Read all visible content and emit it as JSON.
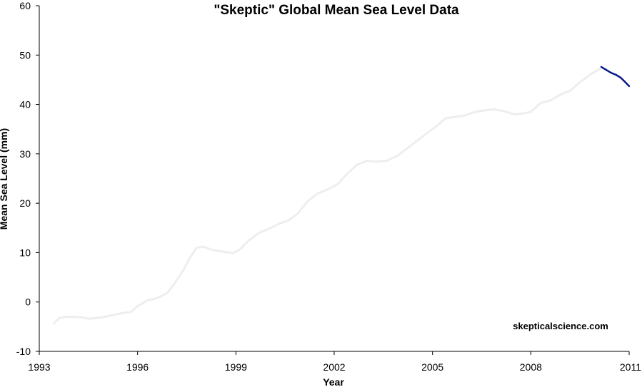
{
  "chart_data": {
    "type": "line",
    "title": "\"Skeptic\" Global Mean Sea Level Data",
    "xlabel": "Year",
    "ylabel": "Mean Sea Level (mm)",
    "xlim": [
      1993,
      2011
    ],
    "ylim": [
      -10,
      60
    ],
    "x_ticks": [
      1993,
      1996,
      1999,
      2002,
      2005,
      2008,
      2011
    ],
    "y_ticks": [
      -10,
      0,
      10,
      20,
      30,
      40,
      50,
      60
    ],
    "x_tick_labels": [
      "1993",
      "1996",
      "1999",
      "2002",
      "2005",
      "2008",
      "2011"
    ],
    "y_tick_labels": [
      "-10",
      "0",
      "10",
      "20",
      "30",
      "40",
      "50",
      "60"
    ],
    "grid": false,
    "legend": "none",
    "annotation": "skepticalscience.com",
    "series": [
      {
        "color": "#eeeeee",
        "points": [
          [
            1993.45,
            -4.3
          ],
          [
            1993.6,
            -3.3
          ],
          [
            1993.8,
            -3.0
          ],
          [
            1994.0,
            -3.0
          ],
          [
            1994.3,
            -3.1
          ],
          [
            1994.5,
            -3.4
          ],
          [
            1994.8,
            -3.2
          ],
          [
            1995.0,
            -3.0
          ],
          [
            1995.3,
            -2.6
          ],
          [
            1995.5,
            -2.3
          ],
          [
            1995.8,
            -2.0
          ],
          [
            1996.0,
            -0.8
          ],
          [
            1996.3,
            0.3
          ],
          [
            1996.6,
            0.8
          ],
          [
            1996.9,
            1.8
          ],
          [
            1997.1,
            3.5
          ],
          [
            1997.4,
            6.5
          ],
          [
            1997.6,
            9.0
          ],
          [
            1997.8,
            11.0
          ],
          [
            1998.0,
            11.2
          ],
          [
            1998.3,
            10.5
          ],
          [
            1998.6,
            10.2
          ],
          [
            1998.9,
            9.9
          ],
          [
            1999.1,
            10.5
          ],
          [
            1999.4,
            12.5
          ],
          [
            1999.7,
            14.0
          ],
          [
            2000.0,
            14.8
          ],
          [
            2000.3,
            15.8
          ],
          [
            2000.6,
            16.5
          ],
          [
            2000.9,
            18.0
          ],
          [
            2001.2,
            20.5
          ],
          [
            2001.5,
            22.0
          ],
          [
            2001.8,
            22.8
          ],
          [
            2002.1,
            23.8
          ],
          [
            2002.4,
            26.0
          ],
          [
            2002.7,
            27.8
          ],
          [
            2003.0,
            28.6
          ],
          [
            2003.3,
            28.4
          ],
          [
            2003.6,
            28.6
          ],
          [
            2003.9,
            29.5
          ],
          [
            2004.2,
            31.0
          ],
          [
            2004.5,
            32.5
          ],
          [
            2004.8,
            34.0
          ],
          [
            2005.1,
            35.5
          ],
          [
            2005.4,
            37.2
          ],
          [
            2005.7,
            37.5
          ],
          [
            2006.0,
            37.8
          ],
          [
            2006.3,
            38.5
          ],
          [
            2006.6,
            38.8
          ],
          [
            2006.9,
            39.0
          ],
          [
            2007.2,
            38.6
          ],
          [
            2007.5,
            38.0
          ],
          [
            2007.8,
            38.2
          ],
          [
            2008.0,
            38.5
          ],
          [
            2008.3,
            40.3
          ],
          [
            2008.6,
            40.8
          ],
          [
            2008.9,
            42.0
          ],
          [
            2009.2,
            42.8
          ],
          [
            2009.5,
            44.5
          ],
          [
            2009.8,
            46.0
          ],
          [
            2010.1,
            47.2
          ]
        ]
      },
      {
        "color": "#0a1a8c",
        "points": [
          [
            2010.15,
            47.6
          ],
          [
            2010.3,
            47.0
          ],
          [
            2010.45,
            46.4
          ],
          [
            2010.6,
            46.0
          ],
          [
            2010.75,
            45.4
          ],
          [
            2010.9,
            44.4
          ],
          [
            2011.0,
            43.7
          ]
        ]
      }
    ]
  }
}
